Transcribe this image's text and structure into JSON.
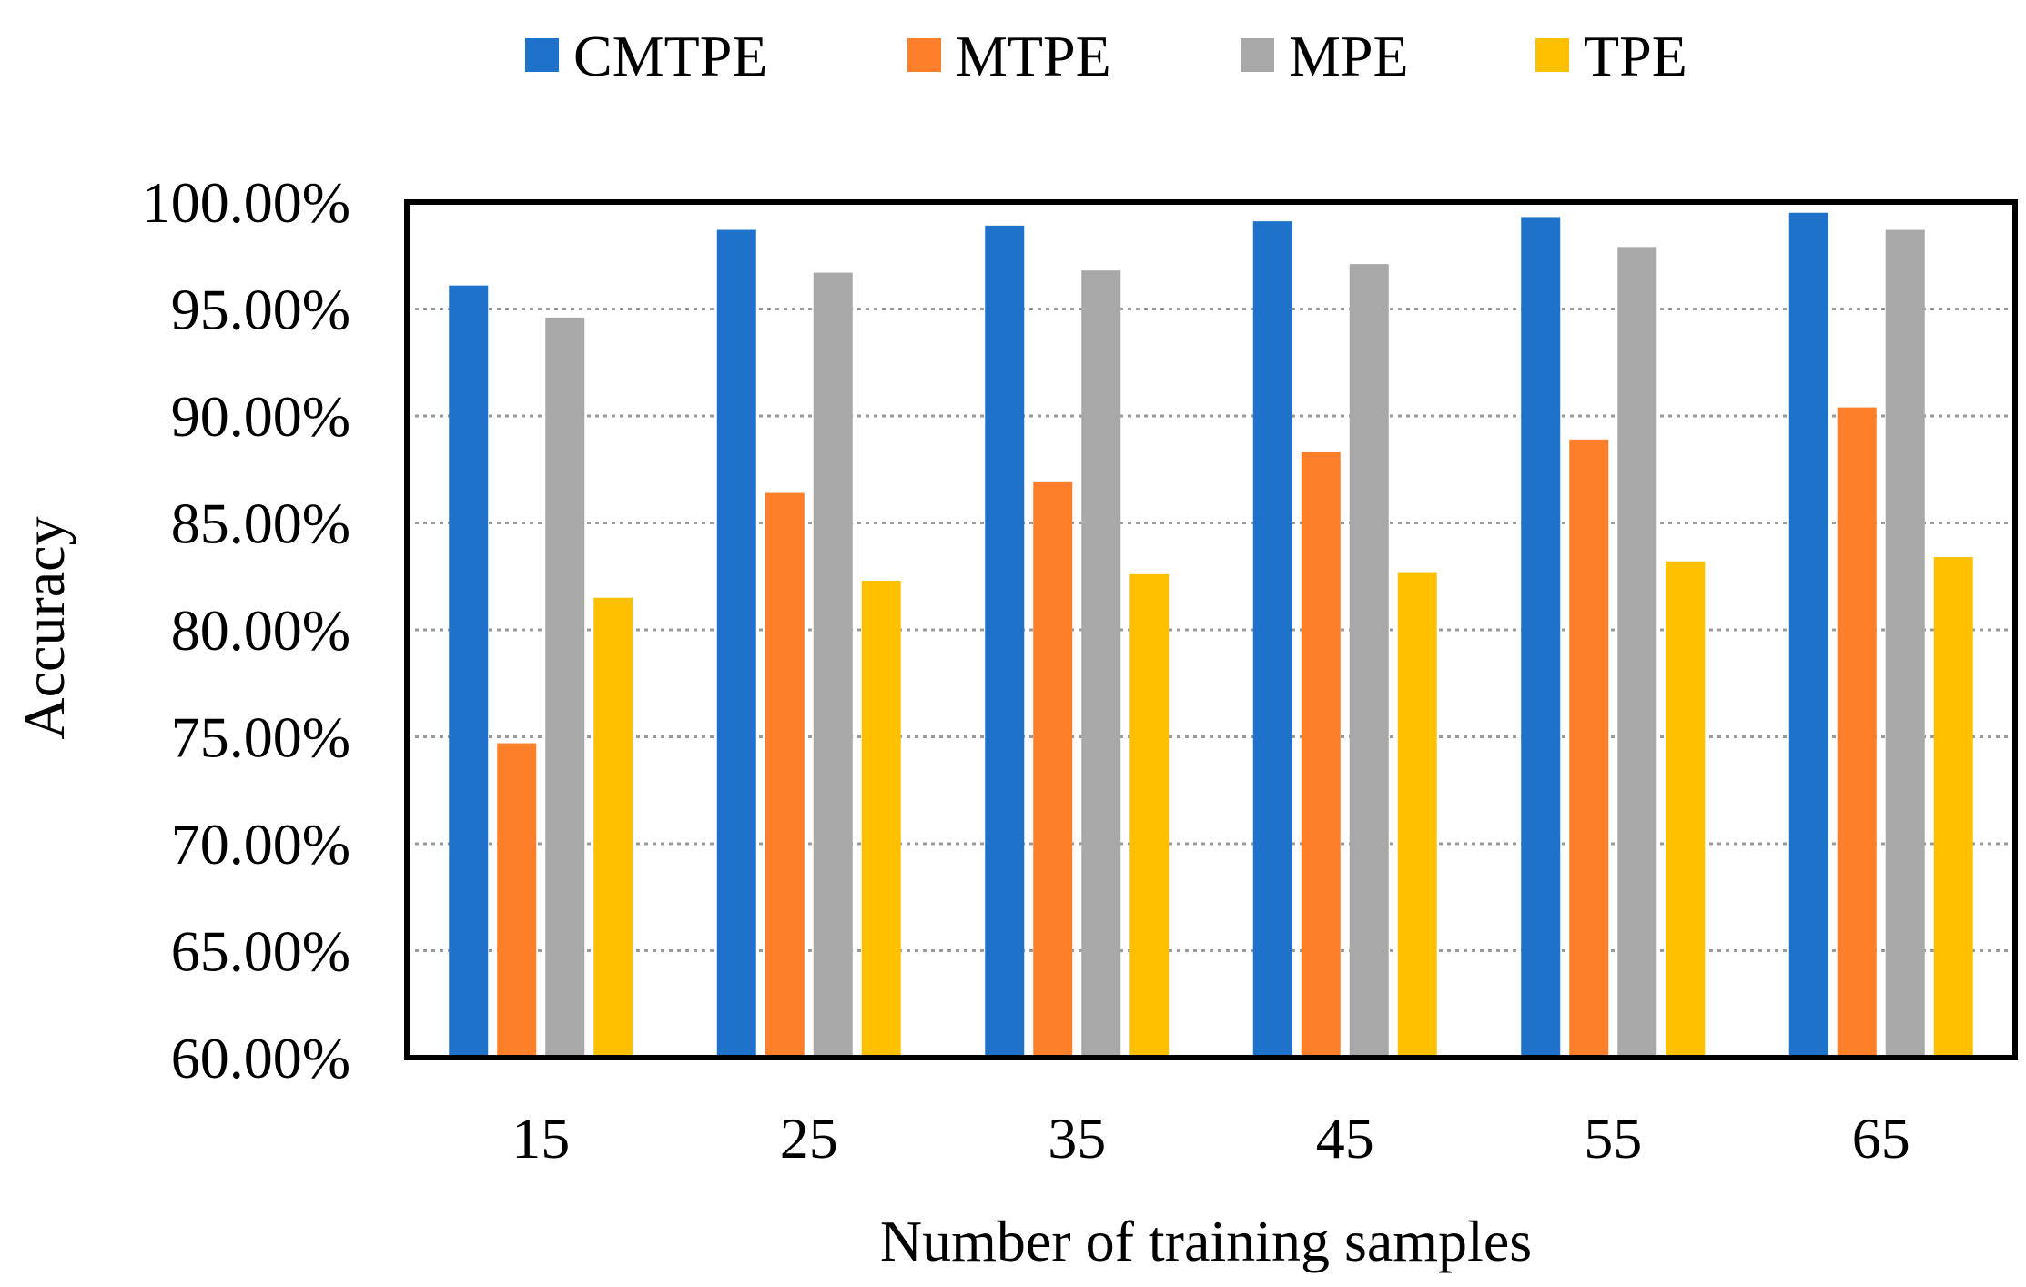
{
  "chart_data": {
    "type": "bar",
    "title": "",
    "xlabel": "Number of training samples",
    "ylabel": "Accuracy",
    "categories": [
      "15",
      "25",
      "35",
      "45",
      "55",
      "65"
    ],
    "ylim": [
      0.6,
      1.0
    ],
    "yticks": [
      0.6,
      0.65,
      0.7,
      0.75,
      0.8,
      0.85,
      0.9,
      0.95,
      1.0
    ],
    "ytick_labels": [
      "60.00%",
      "65.00%",
      "70.00%",
      "75.00%",
      "80.00%",
      "85.00%",
      "90.00%",
      "95.00%",
      "100.00%"
    ],
    "grid": true,
    "legend_position": "top",
    "series": [
      {
        "name": "CMTPE",
        "color": "#1f72c9",
        "values": [
          0.961,
          0.987,
          0.989,
          0.991,
          0.993,
          0.995
        ]
      },
      {
        "name": "MTPE",
        "color": "#fe7f2a",
        "values": [
          0.747,
          0.864,
          0.869,
          0.883,
          0.889,
          0.904
        ]
      },
      {
        "name": "MPE",
        "color": "#a8a8a8",
        "values": [
          0.946,
          0.967,
          0.968,
          0.971,
          0.979,
          0.987
        ]
      },
      {
        "name": "TPE",
        "color": "#ffc000",
        "values": [
          0.815,
          0.823,
          0.826,
          0.827,
          0.832,
          0.834
        ]
      }
    ]
  }
}
